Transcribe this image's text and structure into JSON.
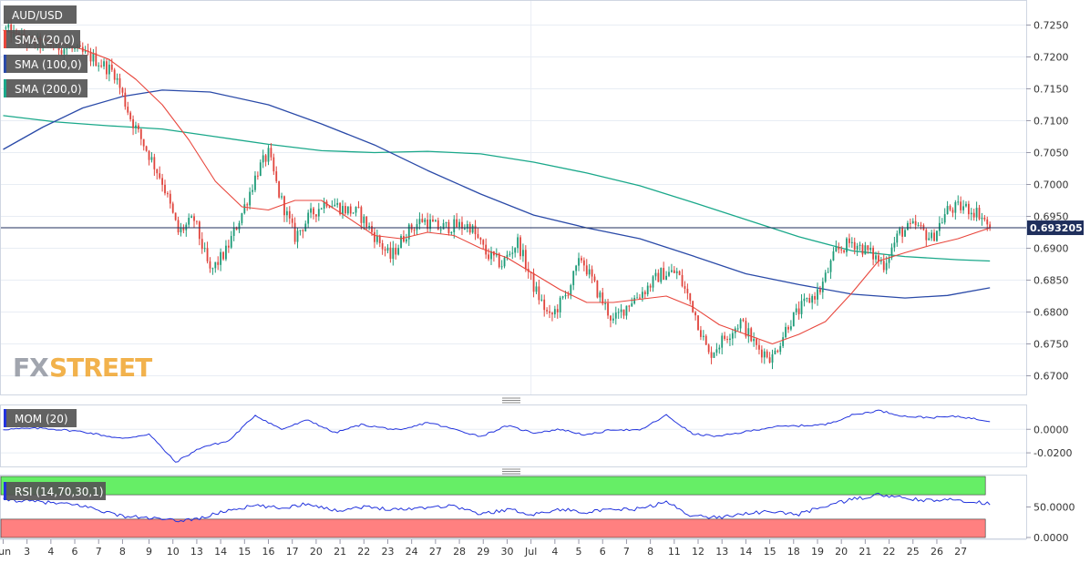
{
  "chart_data": {
    "type": "candlestick",
    "symbol": "AUD/USD",
    "last_price_label": "0.693205",
    "last_price": 0.69321,
    "colors": {
      "up": "#1e9b78",
      "down": "#e0443c",
      "sma20": "#e8463c",
      "sma100": "#2a4aa8",
      "sma200": "#1aa88a",
      "momentum": "#2233dd",
      "rsi_line": "#2233dd",
      "rsi_overbought_band": "#66ee66",
      "rsi_oversold_band": "#ff8080",
      "label_bg": "#555555",
      "price_tag_bg": "#1f2f5c",
      "logo_fx": "#8a8f9a",
      "logo_street": "#f0a020"
    },
    "price_panel": {
      "ylim": [
        0.6675,
        0.7275
      ],
      "ticks": [
        "0.7250",
        "0.7200",
        "0.7150",
        "0.7100",
        "0.7050",
        "0.7000",
        "0.6950",
        "0.6900",
        "0.6850",
        "0.6800",
        "0.6750",
        "0.6700"
      ],
      "tick_values": [
        0.725,
        0.72,
        0.715,
        0.71,
        0.705,
        0.7,
        0.695,
        0.69,
        0.685,
        0.68,
        0.675,
        0.67
      ],
      "legend": [
        "AUD/USD",
        "SMA (20,0)",
        "SMA (100,0)",
        "SMA (200,0)"
      ],
      "sma100_points": [
        [
          0,
          0.7055
        ],
        [
          15,
          0.709
        ],
        [
          30,
          0.712
        ],
        [
          45,
          0.7138
        ],
        [
          60,
          0.7148
        ],
        [
          78,
          0.7145
        ],
        [
          100,
          0.7125
        ],
        [
          120,
          0.7095
        ],
        [
          140,
          0.7062
        ],
        [
          160,
          0.7022
        ],
        [
          180,
          0.6985
        ],
        [
          200,
          0.6952
        ],
        [
          220,
          0.6932
        ],
        [
          240,
          0.6915
        ],
        [
          260,
          0.6888
        ],
        [
          280,
          0.686
        ],
        [
          300,
          0.6843
        ],
        [
          320,
          0.6828
        ],
        [
          340,
          0.6822
        ],
        [
          356,
          0.6826
        ],
        [
          372,
          0.6838
        ]
      ],
      "sma200_points": [
        [
          0,
          0.7108
        ],
        [
          20,
          0.7098
        ],
        [
          40,
          0.7092
        ],
        [
          60,
          0.7087
        ],
        [
          80,
          0.7075
        ],
        [
          100,
          0.7063
        ],
        [
          120,
          0.7053
        ],
        [
          140,
          0.705
        ],
        [
          160,
          0.7052
        ],
        [
          180,
          0.7048
        ],
        [
          200,
          0.7035
        ],
        [
          220,
          0.7018
        ],
        [
          240,
          0.6998
        ],
        [
          260,
          0.6972
        ],
        [
          280,
          0.6945
        ],
        [
          300,
          0.6918
        ],
        [
          320,
          0.6896
        ],
        [
          340,
          0.6887
        ],
        [
          360,
          0.6882
        ],
        [
          372,
          0.688
        ]
      ],
      "sma20_points": [
        [
          0,
          0.7242
        ],
        [
          10,
          0.7232
        ],
        [
          20,
          0.7222
        ],
        [
          30,
          0.7212
        ],
        [
          40,
          0.7196
        ],
        [
          50,
          0.7165
        ],
        [
          60,
          0.7125
        ],
        [
          70,
          0.707
        ],
        [
          80,
          0.7005
        ],
        [
          90,
          0.6965
        ],
        [
          100,
          0.696
        ],
        [
          110,
          0.6975
        ],
        [
          120,
          0.6975
        ],
        [
          130,
          0.6948
        ],
        [
          140,
          0.692
        ],
        [
          150,
          0.6915
        ],
        [
          160,
          0.6925
        ],
        [
          170,
          0.692
        ],
        [
          180,
          0.69
        ],
        [
          190,
          0.6885
        ],
        [
          200,
          0.686
        ],
        [
          210,
          0.6835
        ],
        [
          220,
          0.6815
        ],
        [
          230,
          0.6815
        ],
        [
          240,
          0.682
        ],
        [
          250,
          0.6825
        ],
        [
          260,
          0.6808
        ],
        [
          270,
          0.678
        ],
        [
          280,
          0.6765
        ],
        [
          290,
          0.675
        ],
        [
          300,
          0.6765
        ],
        [
          310,
          0.6785
        ],
        [
          320,
          0.683
        ],
        [
          330,
          0.688
        ],
        [
          340,
          0.6893
        ],
        [
          350,
          0.6905
        ],
        [
          360,
          0.6915
        ],
        [
          372,
          0.6932
        ]
      ]
    },
    "momentum_panel": {
      "label": "MOM (20)",
      "ylim": [
        -0.03,
        0.018
      ],
      "ticks": [
        "0.0000",
        "-0.0200"
      ],
      "tick_values": [
        0.0,
        -0.02
      ],
      "points": [
        [
          0,
          0.0
        ],
        [
          15,
          0.001
        ],
        [
          30,
          -0.002
        ],
        [
          45,
          -0.008
        ],
        [
          55,
          -0.004
        ],
        [
          65,
          -0.028
        ],
        [
          75,
          -0.015
        ],
        [
          85,
          -0.01
        ],
        [
          95,
          0.012
        ],
        [
          105,
          0.0
        ],
        [
          115,
          0.008
        ],
        [
          125,
          -0.003
        ],
        [
          135,
          0.004
        ],
        [
          150,
          -0.001
        ],
        [
          160,
          0.006
        ],
        [
          170,
          0.0
        ],
        [
          180,
          -0.006
        ],
        [
          190,
          0.003
        ],
        [
          200,
          -0.003
        ],
        [
          210,
          0.0
        ],
        [
          220,
          -0.005
        ],
        [
          230,
          0.0
        ],
        [
          240,
          -0.001
        ],
        [
          250,
          0.012
        ],
        [
          260,
          -0.004
        ],
        [
          270,
          -0.006
        ],
        [
          280,
          -0.002
        ],
        [
          290,
          0.002
        ],
        [
          300,
          0.003
        ],
        [
          310,
          0.004
        ],
        [
          320,
          0.012
        ],
        [
          330,
          0.016
        ],
        [
          340,
          0.011
        ],
        [
          350,
          0.01
        ],
        [
          360,
          0.011
        ],
        [
          372,
          0.007
        ]
      ]
    },
    "rsi_panel": {
      "label": "RSI (14,70,30,1)",
      "ylim": [
        0,
        100
      ],
      "ticks": [
        "50.0000",
        "0.0000"
      ],
      "tick_values": [
        50,
        0
      ],
      "overbought": 70,
      "oversold": 30,
      "points": [
        [
          0,
          62
        ],
        [
          15,
          58
        ],
        [
          30,
          52
        ],
        [
          45,
          35
        ],
        [
          55,
          32
        ],
        [
          65,
          27
        ],
        [
          75,
          32
        ],
        [
          85,
          45
        ],
        [
          95,
          52
        ],
        [
          105,
          48
        ],
        [
          115,
          56
        ],
        [
          125,
          44
        ],
        [
          135,
          50
        ],
        [
          150,
          46
        ],
        [
          160,
          50
        ],
        [
          170,
          52
        ],
        [
          180,
          38
        ],
        [
          190,
          46
        ],
        [
          200,
          38
        ],
        [
          210,
          46
        ],
        [
          220,
          42
        ],
        [
          230,
          45
        ],
        [
          240,
          47
        ],
        [
          250,
          58
        ],
        [
          260,
          35
        ],
        [
          270,
          33
        ],
        [
          280,
          40
        ],
        [
          290,
          42
        ],
        [
          300,
          38
        ],
        [
          310,
          52
        ],
        [
          320,
          62
        ],
        [
          330,
          70
        ],
        [
          340,
          64
        ],
        [
          350,
          60
        ],
        [
          360,
          62
        ],
        [
          372,
          55
        ]
      ]
    },
    "x_axis": {
      "total_bars": 380,
      "labels": [
        {
          "text": "Jun",
          "bar": 0
        },
        {
          "text": "3",
          "bar": 9
        },
        {
          "text": "4",
          "bar": 18
        },
        {
          "text": "6",
          "bar": 27
        },
        {
          "text": "7",
          "bar": 36
        },
        {
          "text": "8",
          "bar": 45
        },
        {
          "text": "9",
          "bar": 55
        },
        {
          "text": "10",
          "bar": 64
        },
        {
          "text": "13",
          "bar": 73
        },
        {
          "text": "14",
          "bar": 82
        },
        {
          "text": "15",
          "bar": 91
        },
        {
          "text": "16",
          "bar": 100
        },
        {
          "text": "17",
          "bar": 109
        },
        {
          "text": "20",
          "bar": 118
        },
        {
          "text": "21",
          "bar": 127
        },
        {
          "text": "22",
          "bar": 136
        },
        {
          "text": "23",
          "bar": 145
        },
        {
          "text": "24",
          "bar": 154
        },
        {
          "text": "27",
          "bar": 163
        },
        {
          "text": "28",
          "bar": 172
        },
        {
          "text": "29",
          "bar": 181
        },
        {
          "text": "30",
          "bar": 190
        },
        {
          "text": "Jul",
          "bar": 199
        },
        {
          "text": "4",
          "bar": 208
        },
        {
          "text": "5",
          "bar": 217
        },
        {
          "text": "6",
          "bar": 226
        },
        {
          "text": "7",
          "bar": 235
        },
        {
          "text": "8",
          "bar": 244
        },
        {
          "text": "11",
          "bar": 253
        },
        {
          "text": "12",
          "bar": 262
        },
        {
          "text": "13",
          "bar": 271
        },
        {
          "text": "14",
          "bar": 280
        },
        {
          "text": "15",
          "bar": 289
        },
        {
          "text": "18",
          "bar": 298
        },
        {
          "text": "19",
          "bar": 307
        },
        {
          "text": "20",
          "bar": 316
        },
        {
          "text": "21",
          "bar": 325
        },
        {
          "text": "22",
          "bar": 334
        },
        {
          "text": "25",
          "bar": 343
        },
        {
          "text": "26",
          "bar": 352
        },
        {
          "text": "27",
          "bar": 361
        }
      ]
    },
    "candle_anchors": [
      [
        0,
        0.7245
      ],
      [
        8,
        0.7225
      ],
      [
        16,
        0.722
      ],
      [
        26,
        0.7212
      ],
      [
        34,
        0.7198
      ],
      [
        42,
        0.7175
      ],
      [
        48,
        0.7105
      ],
      [
        54,
        0.7055
      ],
      [
        60,
        0.7005
      ],
      [
        66,
        0.6925
      ],
      [
        72,
        0.6945
      ],
      [
        78,
        0.6862
      ],
      [
        84,
        0.6895
      ],
      [
        90,
        0.6955
      ],
      [
        96,
        0.7022
      ],
      [
        100,
        0.7048
      ],
      [
        104,
        0.6985
      ],
      [
        110,
        0.6918
      ],
      [
        116,
        0.6952
      ],
      [
        122,
        0.6975
      ],
      [
        128,
        0.6962
      ],
      [
        134,
        0.6955
      ],
      [
        140,
        0.692
      ],
      [
        146,
        0.6885
      ],
      [
        152,
        0.6925
      ],
      [
        158,
        0.6945
      ],
      [
        164,
        0.6932
      ],
      [
        170,
        0.6935
      ],
      [
        176,
        0.6935
      ],
      [
        182,
        0.6892
      ],
      [
        188,
        0.6875
      ],
      [
        194,
        0.691
      ],
      [
        200,
        0.684
      ],
      [
        206,
        0.679
      ],
      [
        212,
        0.6825
      ],
      [
        218,
        0.6885
      ],
      [
        224,
        0.6832
      ],
      [
        230,
        0.6785
      ],
      [
        236,
        0.6815
      ],
      [
        242,
        0.6835
      ],
      [
        248,
        0.686
      ],
      [
        254,
        0.6862
      ],
      [
        260,
        0.6808
      ],
      [
        266,
        0.6732
      ],
      [
        272,
        0.676
      ],
      [
        278,
        0.6785
      ],
      [
        284,
        0.6745
      ],
      [
        290,
        0.6728
      ],
      [
        296,
        0.6782
      ],
      [
        302,
        0.6812
      ],
      [
        308,
        0.6835
      ],
      [
        314,
        0.6895
      ],
      [
        320,
        0.691
      ],
      [
        326,
        0.6895
      ],
      [
        332,
        0.6875
      ],
      [
        338,
        0.6925
      ],
      [
        344,
        0.6935
      ],
      [
        350,
        0.6915
      ],
      [
        356,
        0.696
      ],
      [
        362,
        0.6965
      ],
      [
        368,
        0.6955
      ],
      [
        372,
        0.6932
      ]
    ]
  }
}
